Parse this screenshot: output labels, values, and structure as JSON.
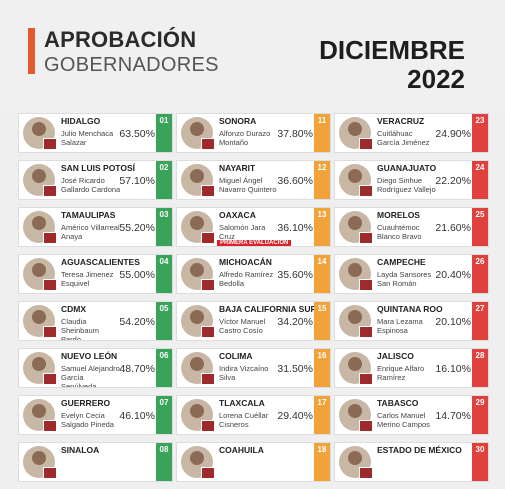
{
  "header": {
    "title_line1": "APROBACIÓN",
    "title_line2": "GOBERNADORES",
    "month": "DICIEMBRE",
    "year": "2022",
    "accent_color": "#e5592e"
  },
  "columns": [
    {
      "color": "green",
      "items": [
        {
          "rank": "01",
          "state": "HIDALGO",
          "name": "Julio Menchaca Salazar",
          "pct": "63.50%"
        },
        {
          "rank": "02",
          "state": "SAN LUIS POTOSÍ",
          "name": "José Ricardo Gallardo Cardona",
          "pct": "57.10%"
        },
        {
          "rank": "03",
          "state": "TAMAULIPAS",
          "name": "Américo Villarreal Anaya",
          "pct": "55.20%"
        },
        {
          "rank": "04",
          "state": "AGUASCALIENTES",
          "name": "Teresa Jimenez Esquivel",
          "pct": "55.00%"
        },
        {
          "rank": "05",
          "state": "CDMX",
          "name": "Claudia Sheinbaum Pardo",
          "pct": "54.20%"
        },
        {
          "rank": "06",
          "state": "NUEVO LEÓN",
          "name": "Samuel Alejandro García Sepúlveda",
          "pct": "48.70%"
        },
        {
          "rank": "07",
          "state": "GUERRERO",
          "name": "Evelyn Cecia Salgado Pineda",
          "pct": "46.10%"
        },
        {
          "rank": "08",
          "state": "SINALOA",
          "name": "",
          "pct": ""
        }
      ]
    },
    {
      "color": "orange",
      "items": [
        {
          "rank": "11",
          "state": "SONORA",
          "name": "Alfonzo Durazo Montaño",
          "pct": "37.80%"
        },
        {
          "rank": "12",
          "state": "NAYARIT",
          "name": "Miguel Ángel Navarro Quintero",
          "pct": "36.60%"
        },
        {
          "rank": "13",
          "state": "OAXACA",
          "name": "Salomón Jara Cruz",
          "pct": "36.10%",
          "note": "PRIMERA EVALUACIÓN"
        },
        {
          "rank": "14",
          "state": "MICHOACÁN",
          "name": "Alfredo Ramírez Bedolla",
          "pct": "35.60%"
        },
        {
          "rank": "15",
          "state": "BAJA CALIFORNIA SUR",
          "name": "Víctor Manuel Castro Cosío",
          "pct": "34.20%"
        },
        {
          "rank": "16",
          "state": "COLIMA",
          "name": "Indira Vizcaíno Silva",
          "pct": "31.50%"
        },
        {
          "rank": "17",
          "state": "TLAXCALA",
          "name": "Lorena Cuéllar Cisneros",
          "pct": "29.40%"
        },
        {
          "rank": "18",
          "state": "COAHUILA",
          "name": "",
          "pct": ""
        }
      ]
    },
    {
      "color": "red",
      "items": [
        {
          "rank": "23",
          "state": "VERACRUZ",
          "name": "Cuitláhuac García Jiménez",
          "pct": "24.90%"
        },
        {
          "rank": "24",
          "state": "GUANAJUATO",
          "name": "Diego Sinhue Rodríguez Vallejo",
          "pct": "22.20%"
        },
        {
          "rank": "25",
          "state": "MORELOS",
          "name": "Cuauhtémoc Blanco Bravo",
          "pct": "21.60%"
        },
        {
          "rank": "26",
          "state": "CAMPECHE",
          "name": "Layda Sansores San Román",
          "pct": "20.40%"
        },
        {
          "rank": "27",
          "state": "QUINTANA ROO",
          "name": "Mara Lezama Espinosa",
          "pct": "20.10%"
        },
        {
          "rank": "28",
          "state": "JALISCO",
          "name": "Enrique Alfaro Ramírez",
          "pct": "16.10%"
        },
        {
          "rank": "29",
          "state": "TABASCO",
          "name": "Carlos Manuel Merino Campos",
          "pct": "14.70%"
        },
        {
          "rank": "30",
          "state": "ESTADO DE MÉXICO",
          "name": "",
          "pct": ""
        }
      ]
    }
  ]
}
